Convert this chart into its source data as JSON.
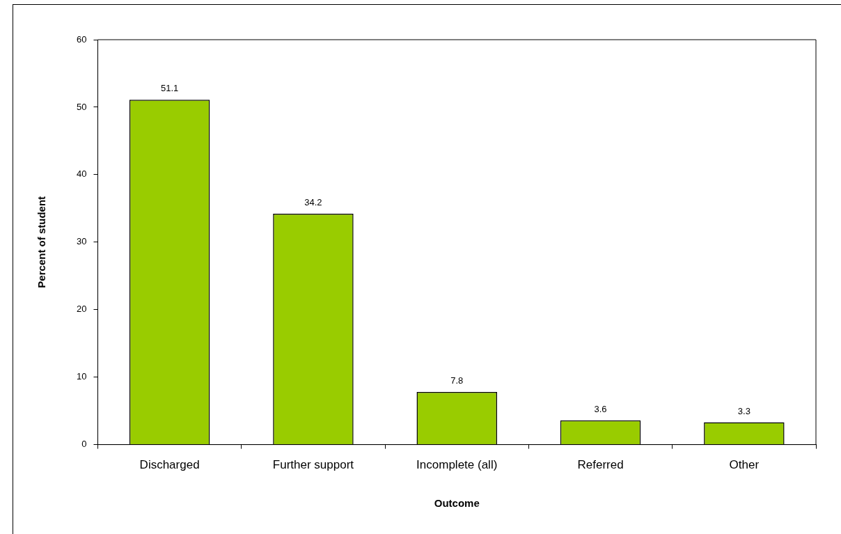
{
  "chart_data": {
    "type": "bar",
    "xlabel": "Outcome",
    "ylabel": "Percent of student",
    "categories": [
      "Discharged",
      "Further support",
      "Incomplete (all)",
      "Referred",
      "Other"
    ],
    "values": [
      51.1,
      34.2,
      7.8,
      3.6,
      3.3
    ],
    "color": "#99cc00",
    "ylim": [
      0,
      60
    ],
    "yticks": [
      0,
      10,
      20,
      30,
      40,
      50,
      60
    ],
    "data_labels": true
  }
}
